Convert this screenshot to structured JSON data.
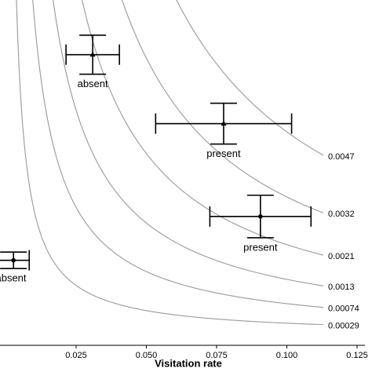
{
  "chart_data": {
    "type": "scatter",
    "x_label": "Visitation rate",
    "xlim": [
      -0.0021,
      0.1278
    ],
    "ylim": [
      -0.0022,
      0.0774
    ],
    "xticks": [
      0.025,
      {
        "value": 0.05,
        "label": "0.050"
      },
      0.075,
      {
        "value": 0.1,
        "label": "0.100"
      },
      0.125
    ],
    "contours": [
      0.0047,
      0.0032,
      0.0021,
      0.0013,
      0.00074,
      0.00029
    ],
    "contour_color": "#999999",
    "points": [
      {
        "label": "absent",
        "marker": "triangle",
        "x": 0.0309,
        "y": 0.0648,
        "xerr": 0.0095,
        "yerr": 0.0045
      },
      {
        "label": "present",
        "marker": "triangle",
        "x": 0.0775,
        "y": 0.0489,
        "xerr": 0.0242,
        "yerr": 0.0047
      },
      {
        "label": "present",
        "marker": "circle",
        "x": 0.0906,
        "y": 0.0275,
        "xerr": 0.018,
        "yerr": 0.0049
      },
      {
        "label": "absent",
        "marker": "circle",
        "x": 0.0027,
        "y": 0.0174,
        "xerr": 0.0056,
        "yerr": 0.0019
      }
    ]
  }
}
